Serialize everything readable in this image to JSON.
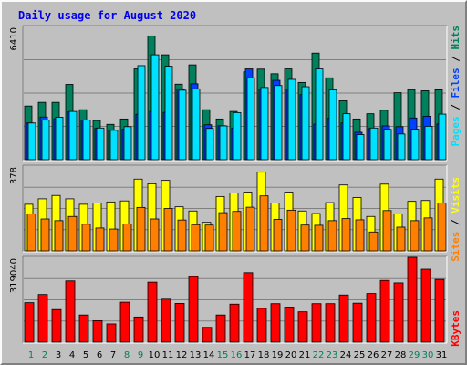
{
  "title": "Daily usage for August 2020",
  "colors": {
    "frame": "#c0c0c0",
    "title": "#0000ee",
    "hits": "#00805c",
    "files": "#0040ff",
    "pages": "#00e0ff",
    "visits": "#ffff00",
    "sites": "#ff8000",
    "kbytes": "#ff0000",
    "weekday_label": "#000000",
    "weekend_label": "#00805c"
  },
  "chart_data": [
    {
      "type": "bar",
      "panel": "hits-files-pages",
      "y_tick_label": "6410",
      "ylim": [
        0,
        6900
      ],
      "categories": [
        "1",
        "2",
        "3",
        "4",
        "5",
        "6",
        "7",
        "8",
        "9",
        "10",
        "11",
        "12",
        "13",
        "14",
        "15",
        "16",
        "17",
        "18",
        "19",
        "20",
        "21",
        "22",
        "23",
        "24",
        "25",
        "26",
        "27",
        "28",
        "29",
        "30",
        "31"
      ],
      "weekend_days": [
        "1",
        "2",
        "8",
        "9",
        "15",
        "16",
        "22",
        "23",
        "29",
        "30"
      ],
      "series": [
        {
          "name": "Hits",
          "values": [
            2780,
            2970,
            2970,
            3900,
            2590,
            2030,
            1830,
            2110,
            4700,
            6410,
            5430,
            3910,
            4910,
            2590,
            2110,
            2500,
            4550,
            4690,
            4450,
            4700,
            4000,
            5520,
            4240,
            3050,
            2110,
            2380,
            2560,
            3470,
            3630,
            3570,
            3620
          ]
        },
        {
          "name": "Files",
          "values": [
            1900,
            2210,
            2120,
            2470,
            2050,
            1620,
            1540,
            1580,
            2350,
            2500,
            2450,
            3670,
            3930,
            1810,
            1760,
            1640,
            4700,
            3650,
            4110,
            3650,
            3370,
            1840,
            2140,
            1900,
            1420,
            1610,
            1750,
            1710,
            2160,
            2250,
            1850
          ]
        },
        {
          "name": "Pages",
          "values": [
            1900,
            2050,
            2200,
            2500,
            2050,
            1640,
            1520,
            1710,
            4870,
            5430,
            4840,
            3600,
            3670,
            1620,
            1750,
            2440,
            4240,
            3740,
            3840,
            4160,
            3780,
            4700,
            3610,
            2380,
            1300,
            1640,
            1570,
            1330,
            1580,
            1730,
            2360
          ]
        }
      ]
    },
    {
      "type": "bar",
      "panel": "visits-sites",
      "y_tick_label": "378",
      "ylim": [
        0,
        404
      ],
      "categories": [
        "1",
        "2",
        "3",
        "4",
        "5",
        "6",
        "7",
        "8",
        "9",
        "10",
        "11",
        "12",
        "13",
        "14",
        "15",
        "16",
        "17",
        "18",
        "19",
        "20",
        "21",
        "22",
        "23",
        "24",
        "25",
        "26",
        "27",
        "28",
        "29",
        "30",
        "31"
      ],
      "series": [
        {
          "name": "Visits",
          "values": [
            222,
            248,
            264,
            248,
            222,
            228,
            233,
            238,
            342,
            320,
            336,
            210,
            190,
            136,
            259,
            276,
            280,
            375,
            228,
            280,
            190,
            178,
            230,
            314,
            254,
            164,
            318,
            176,
            236,
            240,
            342
          ]
        },
        {
          "name": "Sites",
          "values": [
            176,
            152,
            144,
            164,
            127,
            109,
            104,
            128,
            207,
            152,
            202,
            147,
            125,
            123,
            182,
            188,
            208,
            262,
            150,
            194,
            123,
            122,
            144,
            154,
            148,
            90,
            192,
            113,
            144,
            157,
            228
          ]
        }
      ]
    },
    {
      "type": "bar",
      "panel": "kbytes",
      "y_tick_label": "319040",
      "ylim": [
        0,
        343000
      ],
      "categories": [
        "1",
        "2",
        "3",
        "4",
        "5",
        "6",
        "7",
        "8",
        "9",
        "10",
        "11",
        "12",
        "13",
        "14",
        "15",
        "16",
        "17",
        "18",
        "19",
        "20",
        "21",
        "22",
        "23",
        "24",
        "25",
        "26",
        "27",
        "28",
        "29",
        "30",
        "31"
      ],
      "series": [
        {
          "name": "KBytes",
          "values": [
            160000,
            193000,
            132000,
            248000,
            110000,
            87000,
            74000,
            162000,
            102000,
            243000,
            174000,
            157000,
            265000,
            60000,
            110000,
            154000,
            281000,
            137000,
            156000,
            142000,
            123000,
            156000,
            156000,
            191000,
            158000,
            197000,
            250000,
            240000,
            343000,
            295000,
            254000
          ]
        }
      ]
    }
  ],
  "right_labels": {
    "panel1": [
      "Hits",
      "Files",
      "Pages"
    ],
    "panel2": [
      "Visits",
      "Sites"
    ],
    "panel3": [
      "KBytes"
    ]
  },
  "separator": "/"
}
